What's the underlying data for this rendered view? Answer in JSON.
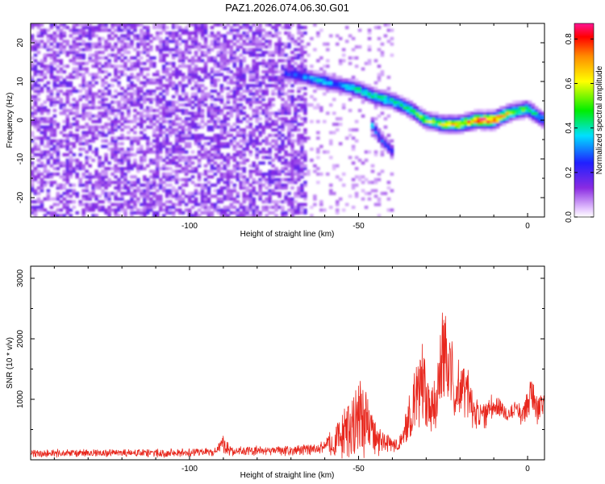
{
  "chart_data": [
    {
      "type": "heatmap",
      "title": "PAZ1.2026.074.06.30.G01",
      "xlabel": "Height of straight line (km)",
      "ylabel": "Frequency (Hz)",
      "xlim": [
        -147,
        5
      ],
      "ylim": [
        -25,
        25
      ],
      "xticks": [
        -100,
        -50,
        0
      ],
      "yticks": [
        -20,
        -10,
        0,
        10,
        20
      ],
      "colorbar": {
        "label": "Normalized spectral amplitude",
        "range": [
          0,
          0.87
        ],
        "ticks": [
          0.0,
          0.2,
          0.4,
          0.6,
          0.8
        ],
        "tick_labels": [
          "0.0",
          "0.2",
          "0.4",
          "0.6",
          "0.8"
        ]
      },
      "signal_track": {
        "x": [
          -70,
          -65,
          -60,
          -55,
          -50,
          -45,
          -40,
          -35,
          -30,
          -25,
          -20,
          -15,
          -10,
          -5,
          0,
          5
        ],
        "freq": [
          12,
          11,
          10,
          9,
          8,
          6,
          5,
          3,
          0,
          -1,
          -1,
          0,
          0,
          2,
          3,
          0
        ],
        "amplitude": [
          0.25,
          0.3,
          0.35,
          0.3,
          0.4,
          0.45,
          0.4,
          0.45,
          0.5,
          0.55,
          0.65,
          0.75,
          0.85,
          0.55,
          0.45,
          0.35
        ]
      },
      "branch": {
        "x": [
          -46,
          -44,
          -42,
          -40
        ],
        "freq": [
          -1,
          -4,
          -6,
          -8
        ],
        "amplitude": [
          0.35,
          0.3,
          0.25,
          0.2
        ]
      },
      "background_noise": {
        "x_range": [
          -147,
          -65
        ],
        "amplitude_range": [
          0.05,
          0.15
        ]
      }
    },
    {
      "type": "line",
      "title": "",
      "xlabel": "Height of straight line (km)",
      "ylabel": "SNR (10 * v/v)",
      "xlim": [
        -147,
        5
      ],
      "ylim": [
        0,
        3200
      ],
      "xticks": [
        -100,
        -50,
        0
      ],
      "yticks": [
        1000,
        2000,
        3000
      ],
      "color": "#e8281e",
      "envelope": {
        "x": [
          -147,
          -130,
          -110,
          -93,
          -90,
          -87,
          -75,
          -62,
          -58,
          -55,
          -52,
          -50,
          -48,
          -46,
          -44,
          -40,
          -37,
          -35,
          -33,
          -31,
          -29,
          -27,
          -25,
          -23,
          -22,
          -20,
          -18,
          -15,
          -12,
          -9,
          -6,
          -3,
          -2,
          -1,
          1,
          3,
          5
        ],
        "mean": [
          100,
          110,
          110,
          130,
          250,
          140,
          150,
          170,
          280,
          400,
          550,
          700,
          650,
          450,
          300,
          250,
          300,
          650,
          1100,
          1300,
          900,
          1100,
          1650,
          1600,
          1150,
          1100,
          1150,
          750,
          800,
          900,
          750,
          850,
          750,
          800,
          1100,
          850,
          1000
        ],
        "amp": [
          70,
          75,
          75,
          75,
          180,
          90,
          90,
          100,
          230,
          450,
          650,
          800,
          700,
          450,
          250,
          150,
          200,
          450,
          700,
          800,
          550,
          650,
          900,
          850,
          700,
          600,
          550,
          300,
          300,
          200,
          150,
          150,
          200,
          250,
          400,
          300,
          200
        ]
      }
    }
  ]
}
